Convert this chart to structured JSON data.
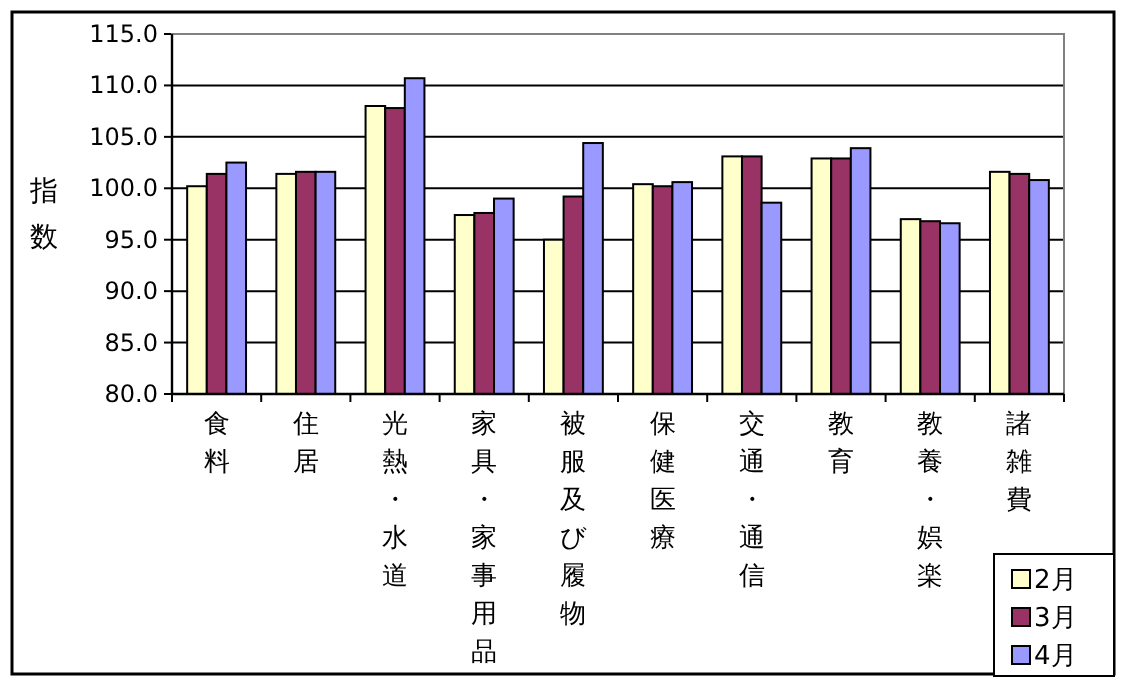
{
  "chart_data": {
    "type": "bar",
    "ylabel": "指数",
    "categories": [
      "食料",
      "住居",
      "光熱・水道",
      "家具・家事用品",
      "被服及び履物",
      "保健医療",
      "交通・通信",
      "教育",
      "教養・娯楽",
      "諸雑費"
    ],
    "series": [
      {
        "name": "2月",
        "color": "#ffffcc",
        "values": [
          100.2,
          101.4,
          108.0,
          97.4,
          95.0,
          100.4,
          103.1,
          102.9,
          97.0,
          101.6
        ]
      },
      {
        "name": "3月",
        "color": "#993366",
        "values": [
          101.4,
          101.6,
          107.8,
          97.6,
          99.2,
          100.2,
          103.1,
          102.9,
          96.8,
          101.4
        ]
      },
      {
        "name": "4月",
        "color": "#9999ff",
        "values": [
          102.5,
          101.6,
          110.7,
          99.0,
          104.4,
          100.6,
          98.6,
          103.9,
          96.6,
          100.8
        ]
      }
    ],
    "ylim": [
      80,
      115
    ],
    "yticks": [
      {
        "value": 80,
        "label": "80.0"
      },
      {
        "value": 85,
        "label": "85.0"
      },
      {
        "value": 90,
        "label": "90.0"
      },
      {
        "value": 95,
        "label": "95.0"
      },
      {
        "value": 100,
        "label": "100.0"
      },
      {
        "value": 105,
        "label": "105.0"
      },
      {
        "value": 110,
        "label": "110.0"
      },
      {
        "value": 115,
        "label": "115.0"
      }
    ],
    "grid": "y",
    "legend": "bottom right"
  }
}
